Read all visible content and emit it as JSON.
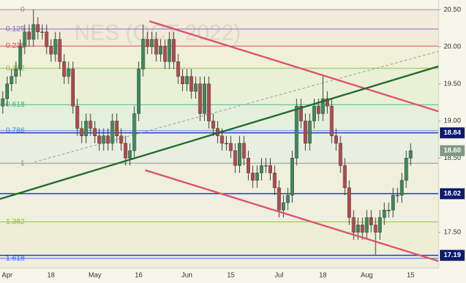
{
  "chart_data": {
    "type": "candlestick",
    "watermark": "NES (OCT 2022)",
    "categories": [
      null,
      "Apr",
      null,
      null,
      null,
      null,
      null,
      null,
      null,
      null,
      null,
      "18",
      null,
      null,
      null,
      null,
      null,
      null,
      null,
      null,
      null,
      "May",
      null,
      null,
      null,
      null,
      null,
      null,
      null,
      null,
      null,
      "16",
      null,
      null,
      null,
      null,
      null,
      null,
      null,
      null,
      null,
      null,
      "Jun",
      null,
      null,
      null,
      null,
      null,
      null,
      null,
      null,
      null,
      "15",
      null,
      null,
      null,
      null,
      null,
      null,
      null,
      null,
      null,
      null,
      "Jul",
      null,
      null,
      null,
      null,
      null,
      null,
      null,
      null,
      null,
      "18",
      null,
      null,
      null,
      null,
      null,
      null,
      null,
      null,
      null,
      "Aug",
      null,
      null,
      null,
      null,
      null,
      null,
      null,
      null,
      null,
      "15"
    ],
    "open": [
      19.2,
      19.3,
      19.5,
      19.6,
      19.7,
      20.0,
      20.2,
      20.1,
      20.3,
      20.2,
      20.2,
      20.0,
      19.9,
      20.1,
      19.8,
      19.6,
      19.7,
      19.2,
      18.9,
      18.8,
      19.0,
      18.9,
      18.8,
      18.7,
      18.8,
      18.7,
      19.0,
      18.8,
      18.7,
      18.5,
      18.6,
      19.1,
      19.7,
      20.1,
      20.0,
      20.1,
      19.9,
      20.0,
      19.8,
      20.1,
      19.8,
      19.6,
      19.5,
      19.6,
      19.4,
      19.5,
      19.1,
      19.5,
      19.0,
      18.9,
      18.8,
      18.7,
      18.7,
      18.6,
      18.4,
      18.7,
      18.5,
      18.3,
      18.2,
      18.3,
      18.4,
      18.4,
      18.3,
      18.1,
      17.8,
      17.9,
      18.0,
      18.5,
      19.2,
      19.0,
      18.7,
      19.0,
      19.2,
      19.1,
      19.3,
      19.2,
      18.8,
      18.7,
      18.4,
      18.1,
      17.7,
      17.5,
      17.6,
      17.5,
      17.7,
      17.6,
      17.5,
      17.7,
      17.8,
      17.8,
      18.0,
      18.0,
      18.2,
      18.5
    ],
    "high": [
      19.4,
      19.6,
      19.7,
      19.8,
      20.1,
      20.3,
      20.3,
      20.5,
      20.4,
      20.3,
      20.3,
      20.1,
      20.2,
      20.2,
      19.9,
      19.8,
      19.8,
      19.3,
      19.0,
      19.1,
      19.1,
      19.0,
      18.9,
      18.9,
      18.9,
      19.1,
      19.1,
      18.9,
      18.8,
      18.7,
      19.2,
      19.8,
      20.3,
      20.2,
      20.2,
      20.2,
      20.1,
      20.1,
      20.2,
      20.2,
      19.9,
      19.7,
      19.7,
      19.7,
      19.6,
      19.6,
      19.6,
      19.6,
      19.1,
      19.0,
      18.9,
      18.8,
      18.8,
      18.7,
      18.8,
      18.8,
      18.6,
      18.4,
      18.4,
      18.5,
      18.5,
      18.5,
      18.4,
      18.2,
      18.0,
      18.1,
      18.6,
      19.3,
      19.3,
      19.1,
      19.1,
      19.3,
      19.3,
      19.6,
      19.4,
      19.3,
      18.9,
      18.8,
      18.5,
      18.2,
      17.8,
      17.7,
      17.7,
      17.8,
      17.8,
      17.7,
      17.8,
      17.9,
      17.9,
      18.1,
      18.1,
      18.3,
      18.6,
      18.7
    ],
    "low": [
      19.1,
      19.2,
      19.4,
      19.5,
      19.6,
      19.9,
      20.0,
      20.0,
      20.1,
      20.1,
      19.9,
      19.8,
      19.8,
      19.7,
      19.5,
      19.5,
      19.1,
      18.8,
      18.7,
      18.7,
      18.8,
      18.7,
      18.6,
      18.6,
      18.6,
      18.6,
      18.7,
      18.6,
      18.4,
      18.4,
      18.5,
      19.0,
      19.6,
      19.9,
      19.9,
      19.8,
      19.8,
      19.7,
      19.7,
      19.7,
      19.5,
      19.4,
      19.4,
      19.3,
      19.3,
      19.0,
      19.0,
      18.9,
      18.8,
      18.7,
      18.6,
      18.6,
      18.5,
      18.3,
      18.3,
      18.4,
      18.2,
      18.1,
      18.1,
      18.2,
      18.3,
      18.2,
      18.0,
      17.7,
      17.7,
      17.8,
      17.9,
      18.4,
      18.9,
      18.6,
      18.6,
      18.9,
      19.0,
      19.0,
      19.1,
      18.7,
      18.6,
      18.3,
      18.0,
      17.6,
      17.4,
      17.4,
      17.4,
      17.4,
      17.5,
      17.2,
      17.4,
      17.6,
      17.7,
      17.7,
      17.9,
      17.9,
      18.1,
      18.4
    ],
    "close": [
      19.3,
      19.5,
      19.6,
      19.7,
      20.0,
      20.2,
      20.1,
      20.3,
      20.2,
      20.2,
      20.0,
      19.9,
      20.1,
      19.8,
      19.6,
      19.7,
      19.2,
      18.9,
      18.8,
      19.0,
      18.9,
      18.8,
      18.7,
      18.8,
      18.7,
      19.0,
      18.8,
      18.7,
      18.5,
      18.6,
      19.1,
      19.7,
      20.1,
      20.0,
      20.1,
      19.9,
      20.0,
      19.8,
      20.1,
      19.8,
      19.6,
      19.5,
      19.6,
      19.4,
      19.5,
      19.1,
      19.5,
      19.0,
      18.9,
      18.8,
      18.7,
      18.7,
      18.6,
      18.4,
      18.7,
      18.5,
      18.3,
      18.2,
      18.3,
      18.4,
      18.4,
      18.3,
      18.1,
      17.8,
      17.9,
      18.0,
      18.5,
      19.2,
      19.0,
      18.7,
      19.0,
      19.2,
      19.1,
      19.3,
      19.2,
      18.8,
      18.7,
      18.4,
      18.1,
      17.7,
      17.5,
      17.6,
      17.5,
      17.7,
      17.6,
      17.5,
      17.7,
      17.8,
      17.8,
      18.0,
      18.0,
      18.2,
      18.5,
      18.6
    ],
    "up_color": "#3b8b5a",
    "down_color": "#b5484a",
    "ylim": [
      17.02,
      20.63
    ],
    "yticks": [
      {
        "value": 20.5,
        "label": "20.50"
      },
      {
        "value": 20.0,
        "label": "20.00"
      },
      {
        "value": 19.5,
        "label": "19.50"
      },
      {
        "value": 19.0,
        "label": "19.00"
      },
      {
        "value": 18.5,
        "label": "18.50"
      },
      {
        "value": 17.5,
        "label": "17.50"
      }
    ],
    "grid": false,
    "fib_levels": [
      {
        "label": "0",
        "value": 20.5,
        "color": "#8a8a8a",
        "zone": "#f3ecdc"
      },
      {
        "label": "0.125",
        "value": 20.24,
        "color": "#7b68c8",
        "zone": "#f1ebd9"
      },
      {
        "label": "0.236",
        "value": 20.01,
        "color": "#d24a4a",
        "zone": "#eef0d8"
      },
      {
        "label": "0.382",
        "value": 19.71,
        "color": "#8dbb3c",
        "zone": "#e9f0d6"
      },
      {
        "label": "0.618",
        "value": 19.22,
        "color": "#3cb878",
        "zone": "#e4efdc"
      },
      {
        "label": "0.786",
        "value": 18.87,
        "color": "#4a8fd6",
        "zone": "#e8eee0"
      },
      {
        "label": "1",
        "value": 18.43,
        "color": "#8a8a8a",
        "zone": "#eeefdc"
      },
      {
        "label": "1.382",
        "value": 17.64,
        "color": "#8dbb3c",
        "zone": "#ecefd6"
      },
      {
        "label": "1.618",
        "value": 17.15,
        "color": "#2962ff",
        "zone": "#eeefdc"
      }
    ],
    "price_lines": [
      {
        "value": 18.84,
        "label": "18.84"
      },
      {
        "value": 18.02,
        "label": "18.02"
      },
      {
        "value": 17.19,
        "label": "17.19"
      }
    ],
    "price_line_color": "#1b2bd0",
    "last_price": {
      "value": 18.6,
      "label": "18.60"
    }
  }
}
